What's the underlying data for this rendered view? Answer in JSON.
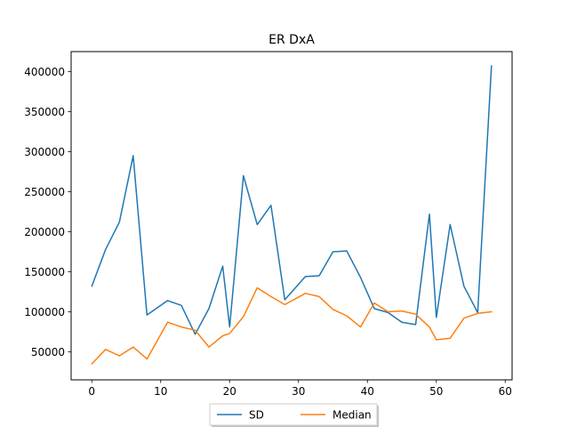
{
  "chart_data": {
    "type": "line",
    "title": "ER DxA",
    "xlabel": "",
    "ylabel": "",
    "xlim": [
      -3,
      61
    ],
    "ylim": [
      15000,
      425000
    ],
    "x_ticks": [
      0,
      10,
      20,
      30,
      40,
      50,
      60
    ],
    "y_ticks": [
      50000,
      100000,
      150000,
      200000,
      250000,
      300000,
      350000,
      400000
    ],
    "grid": false,
    "legend_position": "bottom-center",
    "series": [
      {
        "name": "SD",
        "color": "#1f77b4",
        "x": [
          0,
          2,
          4,
          6,
          8,
          11,
          13,
          15,
          17,
          19,
          20,
          22,
          24,
          26,
          28,
          31,
          33,
          35,
          37,
          39,
          41,
          43,
          45,
          47,
          49,
          50,
          52,
          54,
          56,
          58
        ],
        "y": [
          132000,
          178000,
          212000,
          295000,
          96000,
          114000,
          108000,
          72000,
          104000,
          157000,
          81000,
          270000,
          209000,
          233000,
          115000,
          144000,
          145000,
          175000,
          176000,
          143000,
          104000,
          99000,
          87000,
          84000,
          222000,
          93000,
          209000,
          132000,
          99000,
          407000
        ]
      },
      {
        "name": "Median",
        "color": "#ff7f0e",
        "x": [
          0,
          2,
          4,
          6,
          8,
          11,
          13,
          15,
          17,
          19,
          20,
          22,
          24,
          26,
          28,
          31,
          33,
          35,
          37,
          39,
          41,
          43,
          45,
          47,
          49,
          50,
          52,
          54,
          56,
          58
        ],
        "y": [
          35000,
          53000,
          45000,
          56000,
          41000,
          87000,
          81000,
          77000,
          56000,
          70000,
          73000,
          94000,
          130000,
          119000,
          109000,
          123000,
          119000,
          103000,
          95000,
          81000,
          111000,
          100000,
          101000,
          97000,
          81000,
          65000,
          67000,
          92000,
          98000,
          100000
        ]
      }
    ]
  }
}
